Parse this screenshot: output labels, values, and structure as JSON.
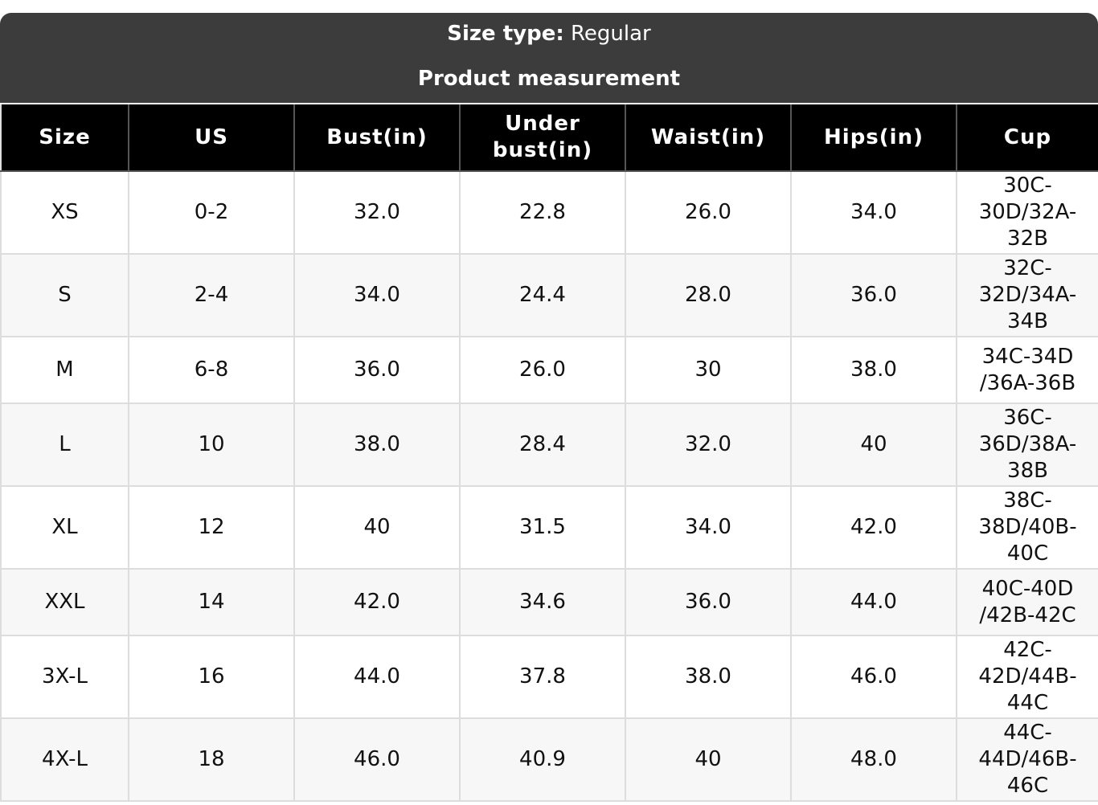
{
  "header": {
    "label": "Size type:",
    "value": "Regular",
    "title": "Product measurement"
  },
  "table": {
    "columns": [
      "Size",
      "US",
      "Bust(in)",
      "Under bust(in)",
      "Waist(in)",
      "Hips(in)",
      "Cup"
    ],
    "rows": [
      [
        "XS",
        "0-2",
        "32.0",
        "22.8",
        "26.0",
        "34.0",
        "30C-30D/32A-32B"
      ],
      [
        "S",
        "2-4",
        "34.0",
        "24.4",
        "28.0",
        "36.0",
        "32C-32D/34A-34B"
      ],
      [
        "M",
        "6-8",
        "36.0",
        "26.0",
        "30",
        "38.0",
        "34C-34D /36A-36B"
      ],
      [
        "L",
        "10",
        "38.0",
        "28.4",
        "32.0",
        "40",
        "36C-36D/38A-38B"
      ],
      [
        "XL",
        "12",
        "40",
        "31.5",
        "34.0",
        "42.0",
        "38C-38D/40B-40C"
      ],
      [
        "XXL",
        "14",
        "42.0",
        "34.6",
        "36.0",
        "44.0",
        "40C-40D /42B-42C"
      ],
      [
        "3X-L",
        "16",
        "44.0",
        "37.8",
        "38.0",
        "46.0",
        "42C-42D/44B-44C"
      ],
      [
        "4X-L",
        "18",
        "46.0",
        "40.9",
        "40",
        "48.0",
        "44C-44D/46B-46C"
      ]
    ]
  }
}
